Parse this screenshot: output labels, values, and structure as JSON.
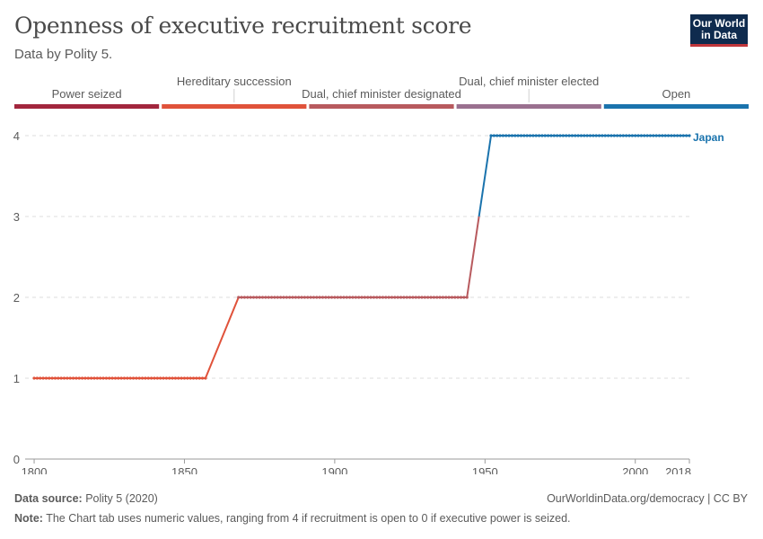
{
  "header": {
    "title": "Openness of executive recruitment score",
    "subtitle": "Data by Polity 5.",
    "logo_line1": "Our World",
    "logo_line2": "in Data"
  },
  "footer": {
    "source_label": "Data source:",
    "source_value": "Polity 5 (2020)",
    "credit": "OurWorldinData.org/democracy | CC BY",
    "note_label": "Note:",
    "note_value": "The Chart tab uses numeric values, ranging from 4 if recruitment is open to 0 if executive power is seized."
  },
  "colors": {
    "power_seized": "#a2263d",
    "hereditary": "#e0523a",
    "designated": "#b85a5e",
    "elected": "#9a708f",
    "open": "#1a73ad"
  },
  "chart_data": {
    "type": "line",
    "title": "Openness of executive recruitment score",
    "xlabel": "",
    "ylabel": "",
    "xlim": [
      1797,
      2018
    ],
    "ylim": [
      0,
      4
    ],
    "x_ticks": [
      1800,
      1850,
      1900,
      1950,
      2000,
      2018
    ],
    "y_ticks": [
      0,
      1,
      2,
      3,
      4
    ],
    "grid": "horizontal dashed",
    "legend": {
      "position": "top",
      "categories": [
        {
          "label": "Power seized",
          "color": "#a2263d",
          "value": 0
        },
        {
          "label": "Hereditary succession",
          "color": "#e0523a",
          "value": 1
        },
        {
          "label": "Dual, chief minister designated",
          "color": "#b85a5e",
          "value": 2
        },
        {
          "label": "Dual, chief minister elected",
          "color": "#9a708f",
          "value": 3
        },
        {
          "label": "Open",
          "color": "#1a73ad",
          "value": 4
        }
      ]
    },
    "series": [
      {
        "name": "Japan",
        "points": [
          [
            1800,
            1
          ],
          [
            1857,
            1
          ],
          [
            1868,
            2
          ],
          [
            1944,
            2
          ],
          [
            1948,
            3
          ],
          [
            1952,
            4
          ],
          [
            2018,
            4
          ]
        ]
      }
    ]
  }
}
